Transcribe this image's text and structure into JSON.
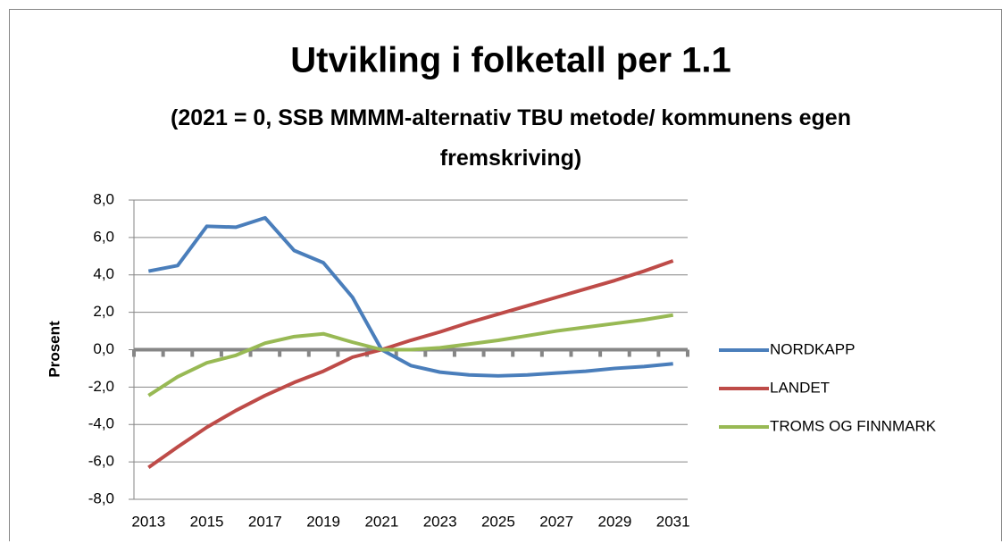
{
  "chart_data": {
    "type": "line",
    "title": "Utvikling i folketall per 1.1",
    "subtitle": "(2021 = 0, SSB MMMM-alternativ TBU metode/ kommunens egen fremskriving)",
    "y_label": "Prosent",
    "x": [
      2013,
      2014,
      2015,
      2016,
      2017,
      2018,
      2019,
      2020,
      2021,
      2022,
      2023,
      2024,
      2025,
      2026,
      2027,
      2028,
      2029,
      2030,
      2031
    ],
    "xlim": [
      2012.5,
      2031.5
    ],
    "xticks": [
      2013,
      2015,
      2017,
      2019,
      2021,
      2023,
      2025,
      2027,
      2029,
      2031
    ],
    "ylim": [
      -8,
      8
    ],
    "yticks": [
      {
        "value": -8,
        "label": "-8,0"
      },
      {
        "value": -6,
        "label": "-6,0"
      },
      {
        "value": -4,
        "label": "-4,0"
      },
      {
        "value": -2,
        "label": "-2,0"
      },
      {
        "value": 0,
        "label": "0,0"
      },
      {
        "value": 2,
        "label": "2,0"
      },
      {
        "value": 4,
        "label": "4,0"
      },
      {
        "value": 6,
        "label": "6,0"
      },
      {
        "value": 8,
        "label": "8,0"
      }
    ],
    "grid": true,
    "legend": "right",
    "series": [
      {
        "name": "NORDKAPP",
        "color": "#4a7ebb",
        "values": [
          4.2,
          4.5,
          6.6,
          6.55,
          7.05,
          5.3,
          4.65,
          2.8,
          0,
          -0.85,
          -1.2,
          -1.35,
          -1.4,
          -1.35,
          -1.25,
          -1.15,
          -1.0,
          -0.9,
          -0.75
        ]
      },
      {
        "name": "LANDET",
        "color": "#be4b48",
        "values": [
          -6.3,
          -5.2,
          -4.15,
          -3.25,
          -2.45,
          -1.75,
          -1.15,
          -0.4,
          0,
          0.5,
          0.95,
          1.45,
          1.9,
          2.35,
          2.8,
          3.25,
          3.7,
          4.2,
          4.75
        ]
      },
      {
        "name": "TROMS OG FINNMARK",
        "color": "#98b954",
        "values": [
          -2.45,
          -1.45,
          -0.7,
          -0.3,
          0.35,
          0.7,
          0.85,
          0.4,
          0,
          0,
          0.1,
          0.3,
          0.5,
          0.75,
          1.0,
          1.2,
          1.4,
          1.6,
          1.85
        ]
      }
    ]
  }
}
